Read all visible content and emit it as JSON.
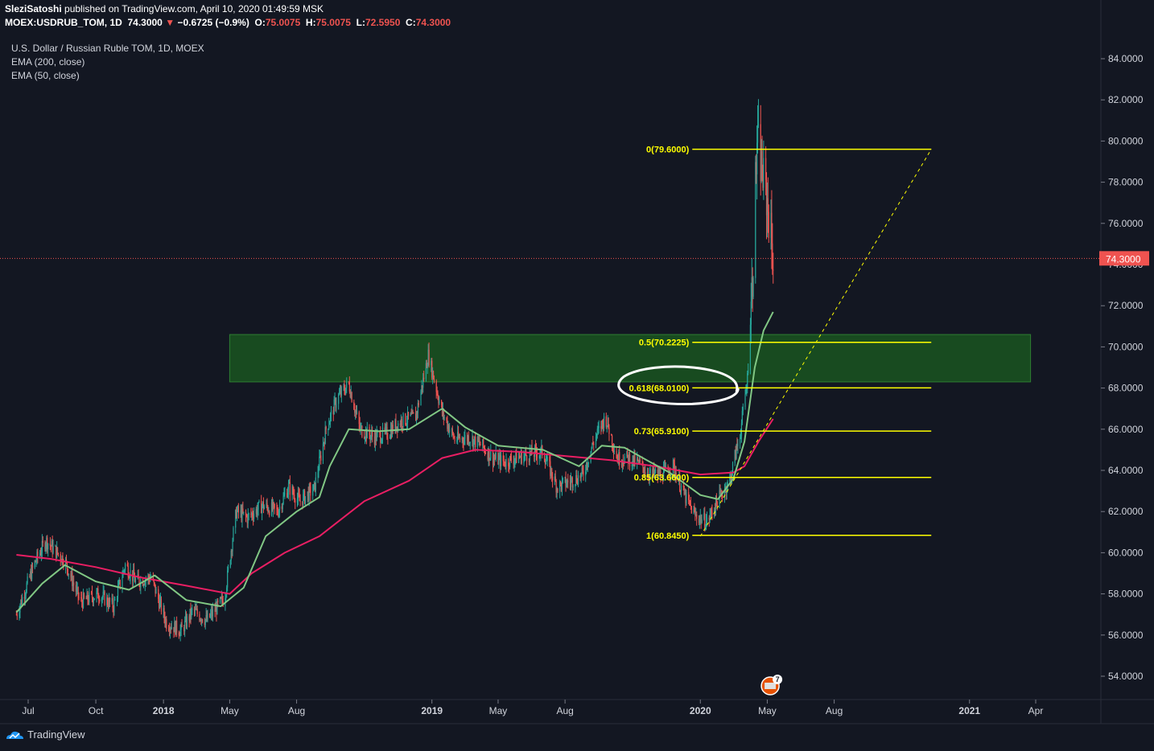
{
  "header": {
    "author": "SleziSatoshi",
    "published_text": "published on TradingView.com, April 10, 2020 01:49:59 MSK",
    "symbol": "MOEX:USDRUB_TOM, 1D",
    "last": "74.3000",
    "change": "−0.6725 (−0.9%)",
    "o_label": "O:",
    "o": "75.0075",
    "h_label": "H:",
    "h": "75.0075",
    "l_label": "L:",
    "l": "72.5950",
    "c_label": "C:",
    "c": "74.3000"
  },
  "legend": {
    "title": "U.S. Dollar / Russian Ruble TOM, 1D, MOEX",
    "ema200": "EMA (200, close)",
    "ema50": "EMA (50, close)"
  },
  "footer": {
    "brand": "TradingView"
  },
  "event_badge": "7",
  "colors": {
    "background": "#131722",
    "up": "#26a69a",
    "down": "#ef5350",
    "ema200": "#e91e63",
    "ema50": "#81c784",
    "fib": "#ffff00",
    "zone": "#1b5e20"
  },
  "chart_data": {
    "type": "candlestick",
    "y_axis_labels": [
      "84.0000",
      "82.0000",
      "80.0000",
      "78.0000",
      "76.0000",
      "74.0000",
      "72.0000",
      "70.0000",
      "68.0000",
      "66.0000",
      "64.0000",
      "62.0000",
      "60.0000",
      "58.0000",
      "56.0000",
      "54.0000"
    ],
    "ylim": [
      53.0,
      85.5
    ],
    "x_axis_labels": [
      "Jul",
      "Oct",
      "2018",
      "May",
      "Aug",
      "2019",
      "May",
      "Aug",
      "2020",
      "May",
      "Aug",
      "2021",
      "Apr"
    ],
    "x_axis_dates": [
      "2017-07-01",
      "2017-10-01",
      "2018-01-01",
      "2018-04-01",
      "2018-07-01",
      "2019-01-01",
      "2019-04-01",
      "2019-07-01",
      "2020-01-01",
      "2020-04-01",
      "2020-07-01",
      "2021-01-01",
      "2021-04-01"
    ],
    "last_price": "74.3000",
    "price_points": [
      [
        "2017-06-15",
        57.0
      ],
      [
        "2017-07-10",
        59.5
      ],
      [
        "2017-07-25",
        60.6
      ],
      [
        "2017-08-20",
        59.6
      ],
      [
        "2017-09-10",
        57.6
      ],
      [
        "2017-10-05",
        58.0
      ],
      [
        "2017-10-25",
        57.4
      ],
      [
        "2017-11-10",
        59.4
      ],
      [
        "2017-11-25",
        58.6
      ],
      [
        "2017-12-15",
        58.8
      ],
      [
        "2018-01-05",
        56.6
      ],
      [
        "2018-01-25",
        56.2
      ],
      [
        "2018-02-10",
        57.2
      ],
      [
        "2018-03-01",
        56.7
      ],
      [
        "2018-03-25",
        57.8
      ],
      [
        "2018-04-10",
        62.0
      ],
      [
        "2018-04-25",
        61.7
      ],
      [
        "2018-05-15",
        62.3
      ],
      [
        "2018-06-05",
        62.0
      ],
      [
        "2018-06-20",
        63.2
      ],
      [
        "2018-07-05",
        62.5
      ],
      [
        "2018-07-25",
        63.1
      ],
      [
        "2018-08-10",
        66.0
      ],
      [
        "2018-08-25",
        67.5
      ],
      [
        "2018-09-10",
        68.2
      ],
      [
        "2018-09-25",
        66.0
      ],
      [
        "2018-10-15",
        65.6
      ],
      [
        "2018-11-01",
        65.8
      ],
      [
        "2018-11-20",
        66.4
      ],
      [
        "2018-12-10",
        66.6
      ],
      [
        "2018-12-27",
        69.6
      ],
      [
        "2019-01-15",
        66.8
      ],
      [
        "2019-02-01",
        65.5
      ],
      [
        "2019-02-20",
        65.6
      ],
      [
        "2019-03-10",
        65.2
      ],
      [
        "2019-03-25",
        64.6
      ],
      [
        "2019-04-10",
        64.4
      ],
      [
        "2019-04-25",
        64.6
      ],
      [
        "2019-05-15",
        64.8
      ],
      [
        "2019-06-01",
        64.9
      ],
      [
        "2019-06-20",
        63.2
      ],
      [
        "2019-07-10",
        63.5
      ],
      [
        "2019-07-25",
        63.8
      ],
      [
        "2019-08-10",
        65.5
      ],
      [
        "2019-08-25",
        66.6
      ],
      [
        "2019-09-10",
        64.6
      ],
      [
        "2019-09-25",
        64.6
      ],
      [
        "2019-10-10",
        64.3
      ],
      [
        "2019-10-25",
        63.8
      ],
      [
        "2019-11-10",
        63.8
      ],
      [
        "2019-11-25",
        64.2
      ],
      [
        "2019-12-10",
        62.8
      ],
      [
        "2019-12-25",
        61.8
      ],
      [
        "2020-01-10",
        61.5
      ],
      [
        "2020-01-25",
        62.6
      ],
      [
        "2020-02-10",
        63.5
      ],
      [
        "2020-02-25",
        66.0
      ],
      [
        "2020-03-05",
        68.5
      ],
      [
        "2020-03-12",
        73.5
      ],
      [
        "2020-03-18",
        80.0
      ],
      [
        "2020-03-22",
        79.2
      ],
      [
        "2020-03-27",
        78.0
      ],
      [
        "2020-04-02",
        76.8
      ],
      [
        "2020-04-09",
        74.3
      ]
    ],
    "ema200_points": [
      [
        "2017-06-15",
        59.9
      ],
      [
        "2017-08-01",
        59.7
      ],
      [
        "2017-10-01",
        59.3
      ],
      [
        "2017-12-01",
        58.8
      ],
      [
        "2018-02-01",
        58.4
      ],
      [
        "2018-04-01",
        58.0
      ],
      [
        "2018-05-01",
        59.0
      ],
      [
        "2018-06-15",
        60.0
      ],
      [
        "2018-08-01",
        60.8
      ],
      [
        "2018-10-01",
        62.5
      ],
      [
        "2018-12-01",
        63.5
      ],
      [
        "2019-01-15",
        64.6
      ],
      [
        "2019-03-01",
        65.0
      ],
      [
        "2019-05-01",
        64.9
      ],
      [
        "2019-07-01",
        64.7
      ],
      [
        "2019-09-01",
        64.5
      ],
      [
        "2019-11-01",
        64.2
      ],
      [
        "2020-01-01",
        63.8
      ],
      [
        "2020-02-15",
        63.9
      ],
      [
        "2020-03-01",
        64.2
      ],
      [
        "2020-03-20",
        65.4
      ],
      [
        "2020-04-09",
        66.5
      ]
    ],
    "ema50_points": [
      [
        "2017-06-15",
        57.1
      ],
      [
        "2017-07-20",
        58.5
      ],
      [
        "2017-08-20",
        59.4
      ],
      [
        "2017-10-01",
        58.6
      ],
      [
        "2017-11-15",
        58.2
      ],
      [
        "2017-12-20",
        58.9
      ],
      [
        "2018-02-01",
        57.7
      ],
      [
        "2018-03-20",
        57.4
      ],
      [
        "2018-04-20",
        58.3
      ],
      [
        "2018-05-20",
        60.8
      ],
      [
        "2018-07-01",
        62.0
      ],
      [
        "2018-08-01",
        62.7
      ],
      [
        "2018-08-15",
        64.2
      ],
      [
        "2018-09-10",
        66.0
      ],
      [
        "2018-10-20",
        65.9
      ],
      [
        "2018-12-01",
        66.0
      ],
      [
        "2019-01-15",
        67.0
      ],
      [
        "2019-02-15",
        66.1
      ],
      [
        "2019-04-01",
        65.2
      ],
      [
        "2019-06-01",
        65.0
      ],
      [
        "2019-07-20",
        64.2
      ],
      [
        "2019-08-20",
        65.2
      ],
      [
        "2019-09-20",
        65.1
      ],
      [
        "2019-10-20",
        64.5
      ],
      [
        "2019-11-20",
        63.9
      ],
      [
        "2020-01-01",
        62.8
      ],
      [
        "2020-01-25",
        62.6
      ],
      [
        "2020-02-15",
        63.6
      ],
      [
        "2020-03-01",
        65.4
      ],
      [
        "2020-03-15",
        69.0
      ],
      [
        "2020-03-27",
        70.8
      ],
      [
        "2020-04-09",
        71.7
      ]
    ],
    "fib_levels": [
      {
        "label": "0(79.6000)",
        "value": 79.6
      },
      {
        "label": "0.5(70.2225)",
        "value": 70.2225
      },
      {
        "label": "0.618(68.0100)",
        "value": 68.01
      },
      {
        "label": "0.73(65.9100)",
        "value": 65.91
      },
      {
        "label": "0.85(63.6600)",
        "value": 63.66
      },
      {
        "label": "1(60.8450)",
        "value": 60.845
      }
    ],
    "fib_range": [
      "2020-01-01",
      "2020-11-10"
    ],
    "zone": {
      "from_date": "2018-04-01",
      "to_date": "2021-03-25",
      "low": 68.3,
      "high": 70.6
    },
    "trend_line": [
      [
        "2020-01-01",
        60.8
      ],
      [
        "2020-11-10",
        79.6
      ]
    ]
  }
}
